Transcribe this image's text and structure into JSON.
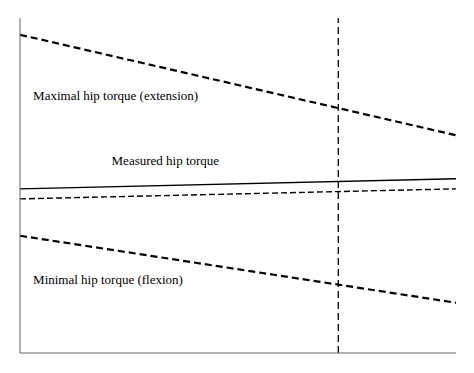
{
  "chart_data": {
    "type": "line",
    "title": "",
    "xlim": [
      0,
      10
    ],
    "ylim": [
      -5,
      5
    ],
    "xticks": [
      0,
      0.5,
      1,
      1.5,
      2,
      2.5,
      3,
      3.5,
      4,
      4.5,
      5,
      5.5,
      6,
      6.5,
      7,
      7.5,
      8,
      8.5,
      9,
      9.5,
      10
    ],
    "yticks": [
      -5,
      -4.5,
      -4,
      -3.5,
      -3,
      -2.5,
      -2,
      -1.5,
      -1,
      -0.5,
      0,
      0.5,
      1,
      1.5,
      2,
      2.5,
      3,
      3.5,
      4,
      4.5,
      5
    ],
    "grid": true,
    "tick_labels": false,
    "series": [
      {
        "x": [
          0,
          10
        ],
        "values": [
          4.5,
          1.5
        ],
        "color": "#000000",
        "line_style": "dashed"
      },
      {
        "x": [
          0,
          10
        ],
        "values": [
          -1.5,
          -3.5
        ],
        "color": "#000000",
        "line_style": "dashed"
      },
      {
        "x": [
          0,
          10
        ],
        "values": [
          -0.4,
          -0.1
        ],
        "color": "#000000",
        "line_style": "dashed"
      },
      {
        "x": [
          0,
          10
        ],
        "values": [
          -0.1,
          0.2
        ],
        "color": "#000000",
        "line_style": "solid"
      }
    ],
    "vlines": [
      {
        "x": 7.3,
        "color": "#000000",
        "line_style": "dashed"
      }
    ],
    "annotations": [
      {
        "text": "Maximal hip torque (extension)",
        "x": 0.3,
        "y": 2.7
      },
      {
        "text": "Measured hip torque",
        "x": 2.1,
        "y": 0.75
      },
      {
        "text": "Minimal hip torque (flexion)",
        "x": 0.3,
        "y": -2.8
      }
    ]
  }
}
